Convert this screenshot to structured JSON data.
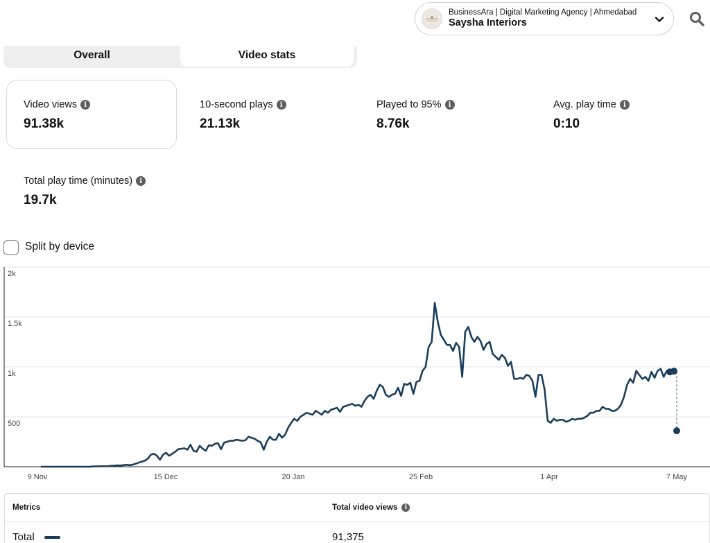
{
  "account": {
    "subtitle": "BusinessAra | Digital Marketing Agency | Ahmedabad",
    "name": "Saysha Interiors"
  },
  "tabs": [
    {
      "label": "Overall",
      "selected": false
    },
    {
      "label": "Video stats",
      "selected": true
    }
  ],
  "metrics": {
    "video_views": {
      "label": "Video views",
      "value": "91.38k"
    },
    "ten_second_plays": {
      "label": "10-second plays",
      "value": "21.13k"
    },
    "played_to_95": {
      "label": "Played to 95%",
      "value": "8.76k"
    },
    "avg_play_time": {
      "label": "Avg. play time",
      "value": "0:10"
    },
    "total_play_time": {
      "label": "Total play time (minutes)",
      "value": "19.7k"
    }
  },
  "split_by_device": {
    "label": "Split by device",
    "checked": false
  },
  "info_icon_glyph": "i",
  "colors": {
    "line": "#1a3d5c",
    "grid": "#e6e6e6",
    "tab_bg": "#efefef"
  },
  "chart_data": {
    "type": "line",
    "y_ticks": [
      "2k",
      "1.5k",
      "1k",
      "500"
    ],
    "y_tick_values": [
      2000,
      1500,
      1000,
      500
    ],
    "ylim": [
      0,
      2000
    ],
    "x_ticks": [
      "9 Nov",
      "15 Dec",
      "20 Jan",
      "25 Feb",
      "1 Apr",
      "7 May"
    ],
    "x_tick_positions": [
      0,
      36,
      72,
      108,
      144,
      180
    ],
    "grid": true,
    "series": [
      {
        "values": [
          0,
          0,
          0,
          0,
          0,
          0,
          0,
          0,
          0,
          0,
          0,
          0,
          0,
          0,
          0,
          0,
          0,
          3,
          3,
          4,
          5,
          5,
          5,
          10,
          10,
          14,
          12,
          15,
          20,
          15,
          20,
          30,
          40,
          50,
          60,
          80,
          120,
          130,
          110,
          70,
          120,
          140,
          110,
          130,
          150,
          175,
          180,
          185,
          170,
          220,
          160,
          150,
          210,
          180,
          160,
          215,
          210,
          230,
          235,
          175,
          240,
          250,
          260,
          260,
          270,
          265,
          260,
          265,
          300,
          290,
          280,
          260,
          245,
          170,
          250,
          300,
          270,
          270,
          330,
          290,
          320,
          390,
          440,
          480,
          460,
          500,
          520,
          540,
          530,
          520,
          560,
          540,
          520,
          560,
          540,
          570,
          580,
          590,
          550,
          600,
          610,
          620,
          630,
          610,
          620,
          600,
          660,
          700,
          720,
          680,
          760,
          820,
          800,
          720,
          700,
          720,
          730,
          790,
          710,
          830,
          820,
          840,
          730,
          850,
          860,
          960,
          1000,
          1200,
          1250,
          1640,
          1450,
          1320,
          1270,
          1220,
          1220,
          1160,
          1240,
          1200,
          900,
          1350,
          1400,
          1300,
          1250,
          1300,
          1260,
          1170,
          1230,
          1250,
          1130,
          1100,
          1070,
          1120,
          1090,
          1010,
          1050,
          880,
          880,
          890,
          880,
          920,
          910,
          860,
          700,
          920,
          920,
          770,
          460,
          440,
          480,
          460,
          470,
          470,
          450,
          460,
          480,
          470,
          480,
          480,
          490,
          510,
          540,
          540,
          560,
          560,
          600,
          580,
          580,
          560,
          560,
          580,
          620,
          700,
          820,
          880,
          840,
          960,
          920,
          880,
          900,
          860,
          950,
          890,
          960,
          980,
          900,
          960,
          950
        ]
      }
    ],
    "forecast_segment": {
      "start": 950,
      "end": 360
    }
  },
  "table": {
    "col_metrics": "Metrics",
    "col_total_views": "Total video views",
    "row_label": "Total",
    "row_value": "91,375"
  }
}
